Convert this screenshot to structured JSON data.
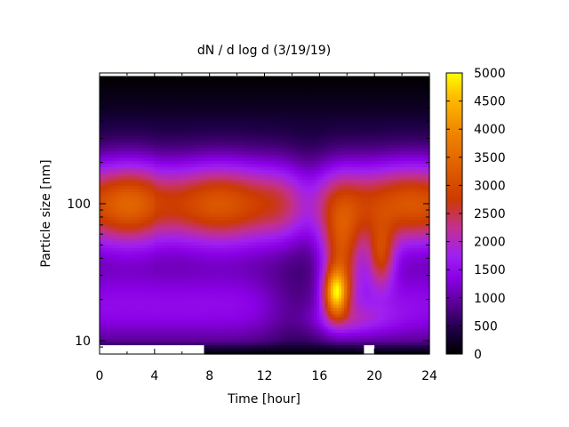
{
  "chart_data": {
    "type": "heatmap",
    "title": "dN / d log d (3/19/19)",
    "xlabel": "Time [hour]",
    "ylabel": "Particle size [nm]",
    "x_scale": "linear",
    "y_scale": "log",
    "xlim": [
      0,
      24
    ],
    "ylim_nm": [
      8,
      900
    ],
    "x_ticks": [
      0,
      4,
      8,
      12,
      16,
      20,
      24
    ],
    "y_ticks": [
      10,
      100
    ],
    "colorbar": {
      "label": "",
      "range": [
        0,
        5000
      ],
      "ticks": [
        0,
        500,
        1000,
        1500,
        2000,
        2500,
        3000,
        3500,
        4000,
        4500,
        5000
      ],
      "palette": [
        "#000000",
        "#1a0040",
        "#5a0095",
        "#8a00e6",
        "#a020f0",
        "#c23090",
        "#cc3a00",
        "#e06000",
        "#f08a00",
        "#ffc000",
        "#ffff00"
      ]
    },
    "grid": false,
    "legend": "colorbar right",
    "features": [
      {
        "description_time_h": [
          0,
          24
        ],
        "peak_size_nm": 100,
        "level": 2900
      },
      {
        "description_time_h": [
          16.5,
          18
        ],
        "peak_size_nm": 22,
        "level": 4300
      },
      {
        "description_time_h": [
          20,
          21
        ],
        "peak_size_nm": 40,
        "level": 3600
      }
    ]
  }
}
